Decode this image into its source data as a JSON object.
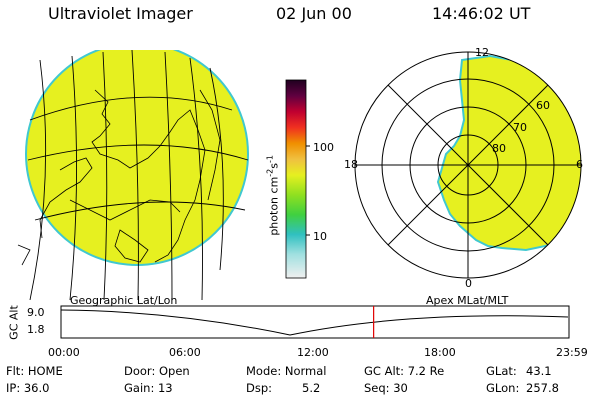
{
  "header": {
    "title": "Ultraviolet Imager",
    "date": "02 Jun 00",
    "time": "14:46:02 UT"
  },
  "left_panel": {
    "label": "Geographic Lat/Lon"
  },
  "right_panel": {
    "label": "Apex MLat/MLT",
    "mlt_labels": [
      "12",
      "18",
      "6",
      "0"
    ],
    "mlat_labels": [
      "60",
      "70",
      "80"
    ]
  },
  "colorbar": {
    "unit_label": "photon cm",
    "unit_sup1": "-2",
    "unit_mid": "s",
    "unit_sup2": "-1",
    "ticks": [
      "100",
      "10"
    ]
  },
  "timeline": {
    "axis_label": "GC Alt",
    "y_ticks": [
      "9.0",
      "1.8"
    ],
    "x_ticks": [
      "00:00",
      "06:00",
      "12:00",
      "18:00",
      "23:59"
    ],
    "current_time_hours": 14.77
  },
  "status": {
    "flt": "Flt: HOME",
    "ip": "IP: 36.0",
    "door": "Door: Open",
    "gain": "Gain: 13",
    "mode": "Mode: Normal",
    "dsp": "Dsp:",
    "dsp_val": "5.2",
    "gcalt": "GC Alt: 7.2 Re",
    "seq": "Seq: 30",
    "glat": "GLat:",
    "glat_val": "43.1",
    "glon": "GLon:",
    "glon_val": "257.8"
  },
  "colors": {
    "aurora": "#e6f020",
    "rim": "#40c8d0",
    "marker": "#e00000"
  }
}
